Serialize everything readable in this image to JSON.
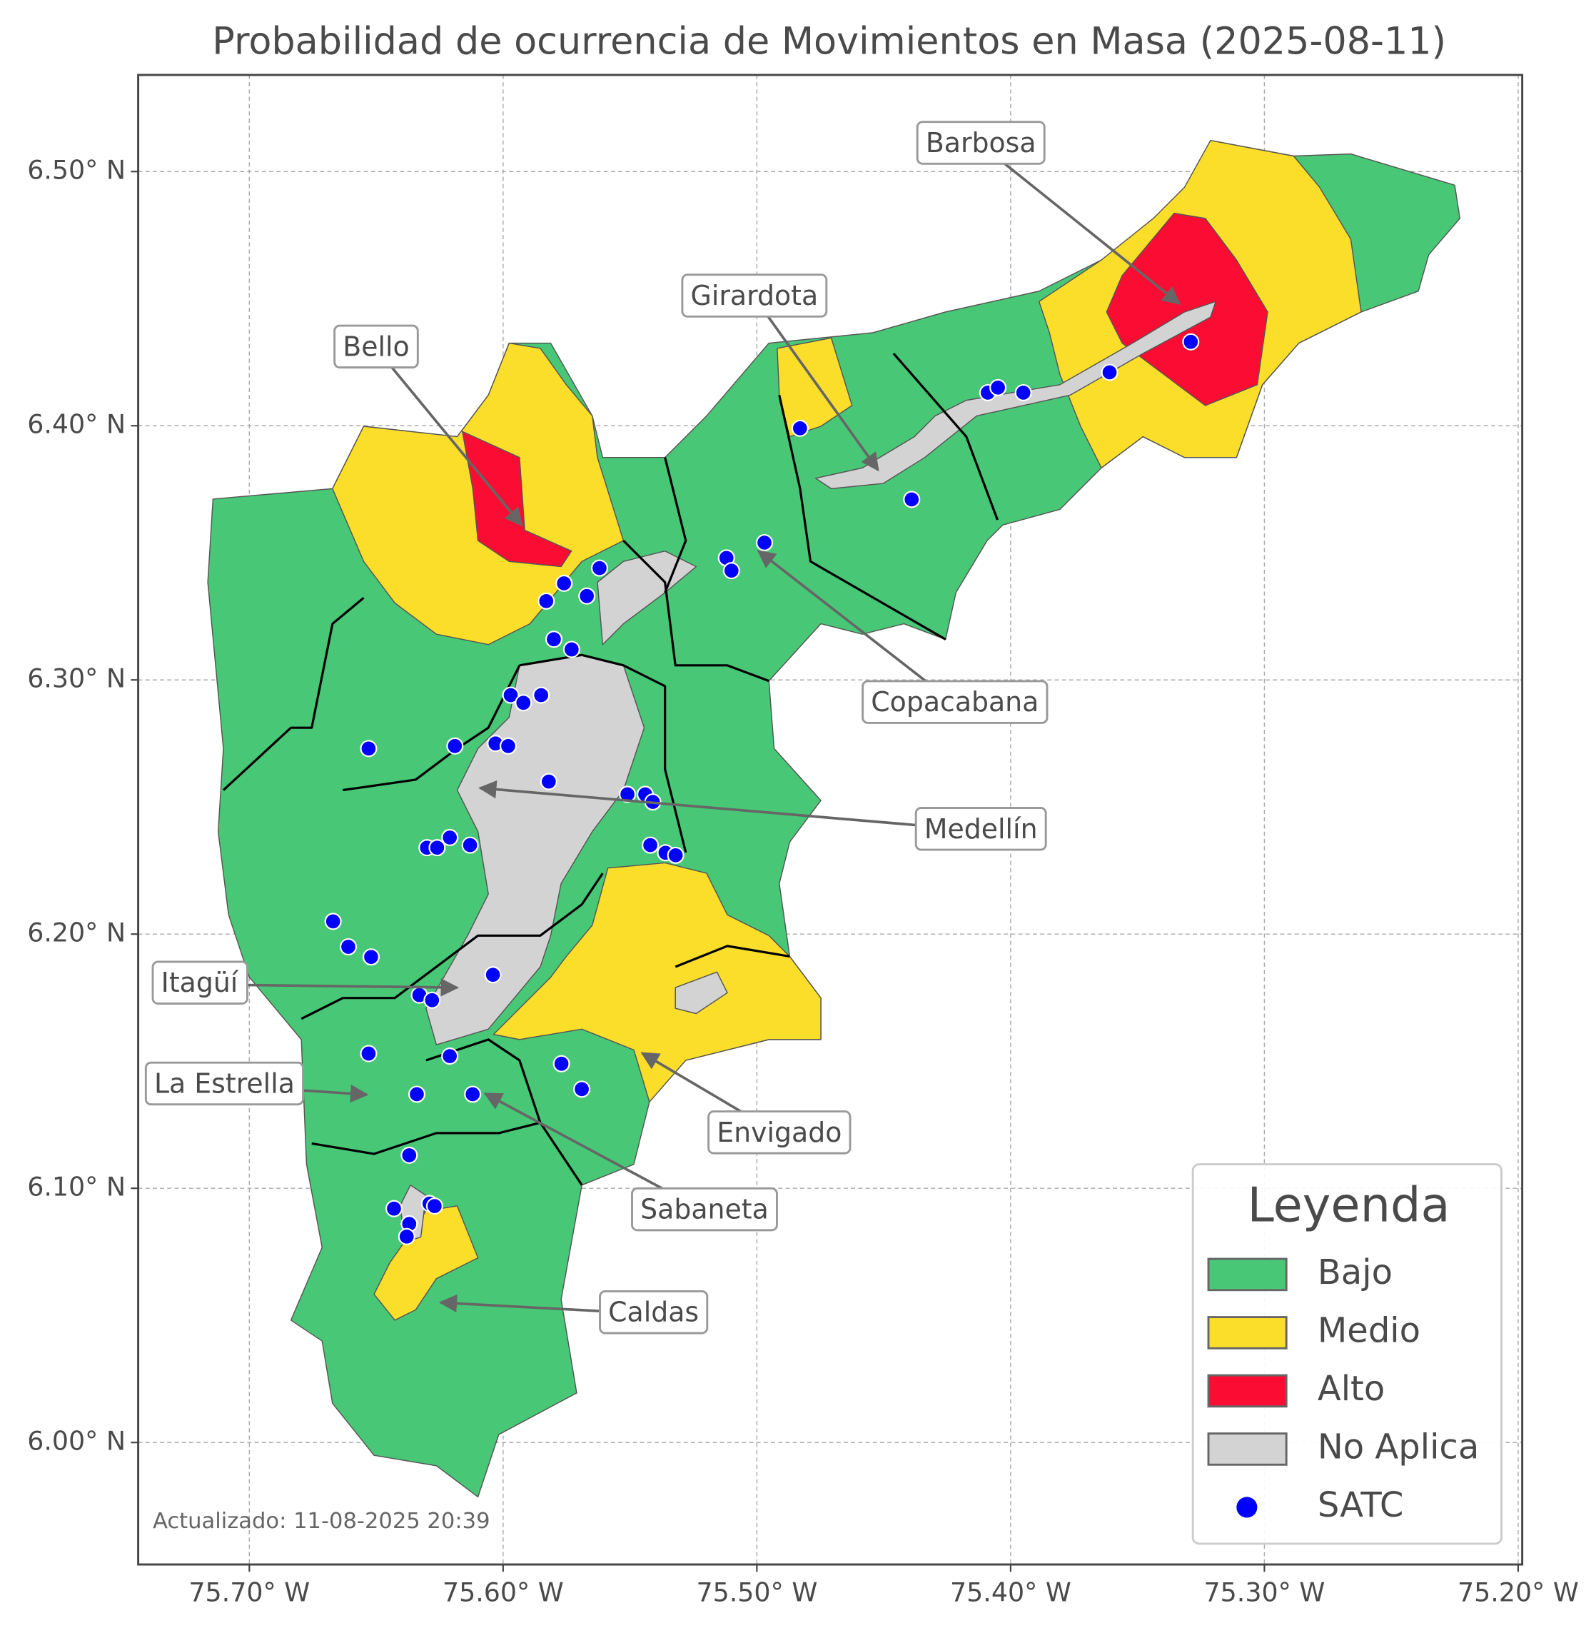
{
  "title": "Probabilidad de ocurrencia de Movimientos en Masa (2025-08-11)",
  "map": {
    "xlim": [
      -75.7438,
      -75.1984
    ],
    "ylim": [
      5.952,
      6.538
    ],
    "grid": true,
    "xticks": [
      {
        "value": -75.7,
        "label": "75.70° W"
      },
      {
        "value": -75.6,
        "label": "75.60° W"
      },
      {
        "value": -75.5,
        "label": "75.50° W"
      },
      {
        "value": -75.4,
        "label": "75.40° W"
      },
      {
        "value": -75.3,
        "label": "75.30° W"
      },
      {
        "value": -75.2,
        "label": "75.20° W"
      }
    ],
    "yticks": [
      {
        "value": 6.0,
        "label": "6.00° N"
      },
      {
        "value": 6.1,
        "label": "6.10° N"
      },
      {
        "value": 6.2,
        "label": "6.20° N"
      },
      {
        "value": 6.3,
        "label": "6.30° N"
      },
      {
        "value": 6.4,
        "label": "6.40° N"
      },
      {
        "value": 6.5,
        "label": "6.50° N"
      }
    ],
    "satc": [
      [
        -75.329,
        6.433
      ],
      [
        -75.361,
        6.421
      ],
      [
        -75.409,
        6.413
      ],
      [
        -75.405,
        6.415
      ],
      [
        -75.395,
        6.413
      ],
      [
        -75.483,
        6.399
      ],
      [
        -75.439,
        6.371
      ],
      [
        -75.497,
        6.354
      ],
      [
        -75.512,
        6.348
      ],
      [
        -75.51,
        6.343
      ],
      [
        -75.562,
        6.344
      ],
      [
        -75.576,
        6.338
      ],
      [
        -75.583,
        6.331
      ],
      [
        -75.567,
        6.333
      ],
      [
        -75.58,
        6.316
      ],
      [
        -75.573,
        6.312
      ],
      [
        -75.597,
        6.294
      ],
      [
        -75.592,
        6.291
      ],
      [
        -75.585,
        6.294
      ],
      [
        -75.653,
        6.273
      ],
      [
        -75.619,
        6.274
      ],
      [
        -75.603,
        6.275
      ],
      [
        -75.598,
        6.274
      ],
      [
        -75.582,
        6.26
      ],
      [
        -75.551,
        6.255
      ],
      [
        -75.544,
        6.255
      ],
      [
        -75.541,
        6.252
      ],
      [
        -75.542,
        6.235
      ],
      [
        -75.536,
        6.232
      ],
      [
        -75.532,
        6.231
      ],
      [
        -75.621,
        6.238
      ],
      [
        -75.63,
        6.234
      ],
      [
        -75.626,
        6.234
      ],
      [
        -75.613,
        6.235
      ],
      [
        -75.667,
        6.205
      ],
      [
        -75.661,
        6.195
      ],
      [
        -75.652,
        6.191
      ],
      [
        -75.604,
        6.184
      ],
      [
        -75.633,
        6.176
      ],
      [
        -75.628,
        6.174
      ],
      [
        -75.653,
        6.153
      ],
      [
        -75.621,
        6.152
      ],
      [
        -75.577,
        6.149
      ],
      [
        -75.569,
        6.139
      ],
      [
        -75.634,
        6.137
      ],
      [
        -75.612,
        6.137
      ],
      [
        -75.637,
        6.113
      ],
      [
        -75.643,
        6.092
      ],
      [
        -75.629,
        6.094
      ],
      [
        -75.627,
        6.093
      ],
      [
        -75.637,
        6.086
      ],
      [
        -75.638,
        6.081
      ]
    ]
  },
  "callouts": [
    "Barbosa",
    "Girardota",
    "Bello",
    "Copacabana",
    "Medellín",
    "Itagüí",
    "La Estrella",
    "Envigado",
    "Sabaneta",
    "Caldas"
  ],
  "legend": {
    "title": "Leyenda",
    "items": [
      {
        "name": "Bajo",
        "color": "#48c876"
      },
      {
        "name": "Medio",
        "color": "#fbde2a"
      },
      {
        "name": "Alto",
        "color": "#fb0d33"
      },
      {
        "name": "No Aplica",
        "color": "#d3d3d3"
      },
      {
        "name": "SATC",
        "color": "#0000ff"
      }
    ]
  },
  "updated": "Actualizado: 11-08-2025 20:39"
}
